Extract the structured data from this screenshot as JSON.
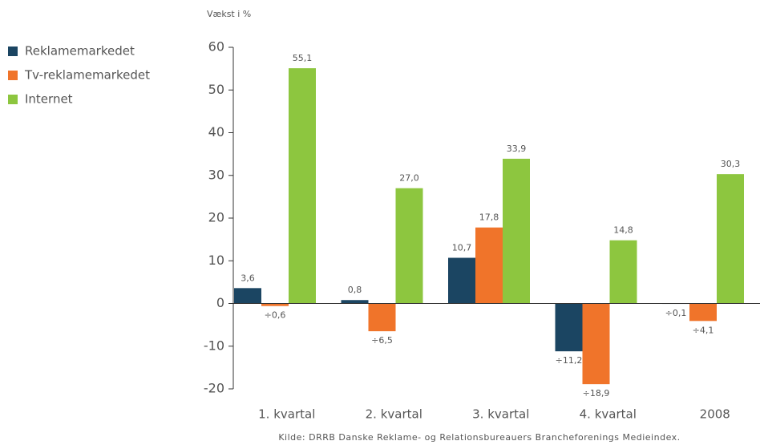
{
  "chart_data": {
    "type": "bar",
    "y_label": "Vækst i %",
    "source": "Kilde: DRRB Danske Reklame- og Relationsbureauers Brancheforenings Medieindex.",
    "categories": [
      "1. kvartal",
      "2. kvartal",
      "3. kvartal",
      "4. kvartal",
      "2008"
    ],
    "series": [
      {
        "name": "Reklamemarkedet",
        "color": "#1b4562",
        "values": [
          3.6,
          0.8,
          10.7,
          -11.2,
          -0.1
        ],
        "value_labels": [
          "3,6",
          "0,8",
          "10,7",
          "÷11,2",
          "÷0,1"
        ]
      },
      {
        "name": "Tv-reklamemarkedet",
        "color": "#f0742a",
        "values": [
          -0.6,
          -6.5,
          17.8,
          -18.9,
          -4.1
        ],
        "value_labels": [
          "÷0,6",
          "÷6,5",
          "17,8",
          "÷18,9",
          "÷4,1"
        ]
      },
      {
        "name": "Internet",
        "color": "#8dc63f",
        "values": [
          55.1,
          27.0,
          33.9,
          14.8,
          30.3
        ],
        "value_labels": [
          "55,1",
          "27,0",
          "33,9",
          "14,8",
          "30,3"
        ]
      }
    ],
    "ylim": [
      -20,
      60
    ],
    "yticks": [
      -20,
      -10,
      0,
      10,
      20,
      30,
      40,
      50,
      60
    ],
    "legend": "upper left"
  }
}
